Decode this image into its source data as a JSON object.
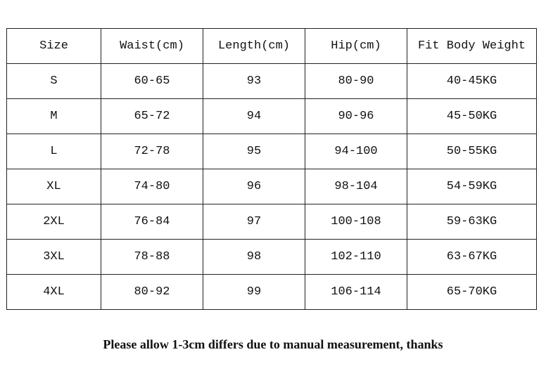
{
  "table": {
    "columns": [
      "Size",
      "Waist(cm)",
      "Length(cm)",
      "Hip(cm)",
      "Fit Body Weight"
    ],
    "rows": [
      [
        "S",
        "60-65",
        "93",
        "80-90",
        "40-45KG"
      ],
      [
        "M",
        "65-72",
        "94",
        "90-96",
        "45-50KG"
      ],
      [
        "L",
        "72-78",
        "95",
        "94-100",
        "50-55KG"
      ],
      [
        "XL",
        "74-80",
        "96",
        "98-104",
        "54-59KG"
      ],
      [
        "2XL",
        "76-84",
        "97",
        "100-108",
        "59-63KG"
      ],
      [
        "3XL",
        "78-88",
        "98",
        "102-110",
        "63-67KG"
      ],
      [
        "4XL",
        "80-92",
        "99",
        "106-114",
        "65-70KG"
      ]
    ]
  },
  "note": "Please allow 1-3cm differs due to manual measurement, thanks"
}
